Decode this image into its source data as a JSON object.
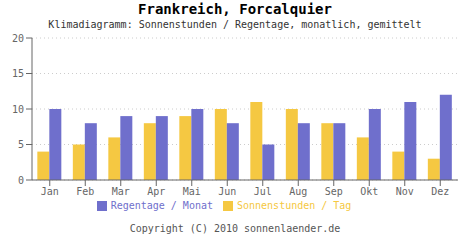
{
  "chart_data": {
    "type": "bar",
    "title": "Frankreich, Forcalquier",
    "subtitle": "Klimadiagramm: Sonnenstunden / Regentage, monatlich, gemittelt",
    "categories": [
      "Jan",
      "Feb",
      "Mar",
      "Apr",
      "Mai",
      "Jun",
      "Jul",
      "Aug",
      "Sep",
      "Okt",
      "Nov",
      "Dez"
    ],
    "series": [
      {
        "name": "Sonnenstunden / Tag",
        "color": "#f5c842",
        "values": [
          4,
          5,
          6,
          8,
          9,
          10,
          11,
          10,
          8,
          6,
          4,
          3
        ]
      },
      {
        "name": "Regentage / Monat",
        "color": "#6f6fcc",
        "values": [
          10,
          8,
          9,
          9,
          10,
          8,
          5,
          8,
          8,
          10,
          11,
          12
        ]
      }
    ],
    "ylim": [
      0,
      20
    ],
    "yticks": [
      0,
      5,
      10,
      15,
      20
    ],
    "grid": true,
    "legend": "bottom",
    "annotations": [
      "Copyright (C) 2010 sonnenlaender.de"
    ]
  }
}
